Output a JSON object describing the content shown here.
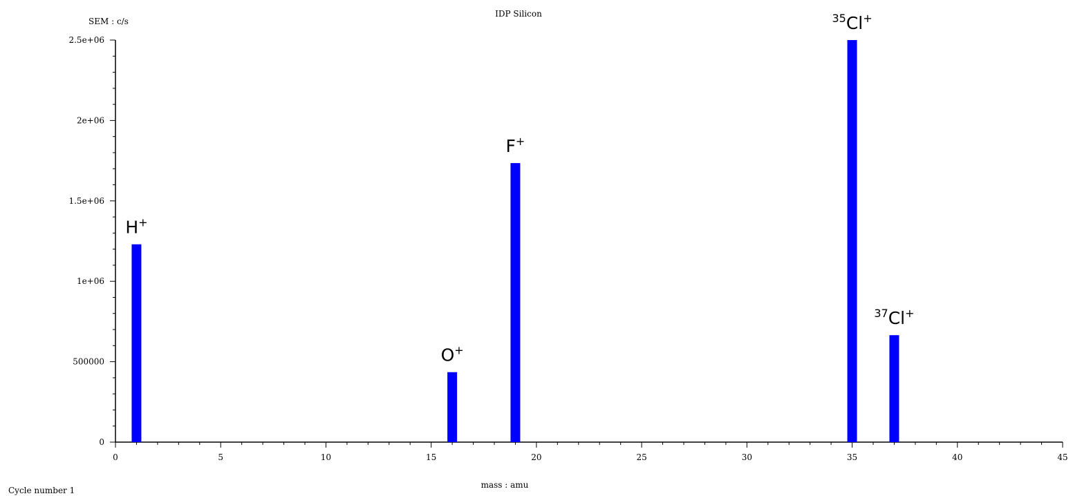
{
  "chart_data": {
    "type": "bar",
    "title": "IDP Silicon",
    "ylabel": "SEM : c/s",
    "xlabel": "mass : amu",
    "footer": "Cycle number 1",
    "xlim": [
      0,
      45
    ],
    "ylim": [
      0,
      2500000
    ],
    "x_ticks": [
      0,
      5,
      10,
      15,
      20,
      25,
      30,
      35,
      40,
      45
    ],
    "x_tick_labels": [
      "0",
      "5",
      "10",
      "15",
      "20",
      "25",
      "30",
      "35",
      "40",
      "45"
    ],
    "y_ticks": [
      0,
      500000,
      1000000,
      1500000,
      2000000,
      2500000
    ],
    "y_tick_labels": [
      "0",
      "500000",
      "1e+06",
      "1.5e+06",
      "2e+06",
      "2.5e+06"
    ],
    "grid": false,
    "bar_color": "#0000ff",
    "bars": [
      {
        "x": 1,
        "y": 1230000,
        "label_pre": "",
        "label_main": "H",
        "label_post": "+"
      },
      {
        "x": 16,
        "y": 435000,
        "label_pre": "",
        "label_main": "O",
        "label_post": "+"
      },
      {
        "x": 19,
        "y": 1735000,
        "label_pre": "",
        "label_main": "F",
        "label_post": "+"
      },
      {
        "x": 35,
        "y": 2500000,
        "label_pre": "35",
        "label_main": "Cl",
        "label_post": "+"
      },
      {
        "x": 37,
        "y": 665000,
        "label_pre": "37",
        "label_main": "Cl",
        "label_post": "+"
      }
    ]
  }
}
